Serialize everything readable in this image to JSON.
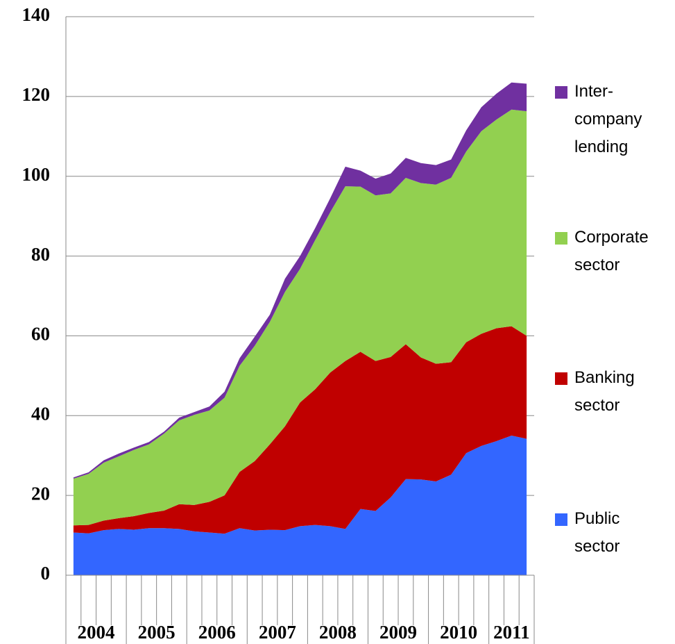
{
  "chart_data": {
    "type": "stacked_area",
    "categories": [
      "2004",
      null,
      null,
      null,
      "2005",
      null,
      null,
      null,
      "2006",
      null,
      null,
      null,
      "2007",
      null,
      null,
      null,
      "2008",
      null,
      null,
      null,
      "2009",
      null,
      null,
      null,
      "2010",
      null,
      null,
      null,
      "2011",
      null,
      null
    ],
    "series": [
      {
        "name": "Public sector",
        "color": "#3366ff",
        "values": [
          10.7,
          10.5,
          11.3,
          11.6,
          11.4,
          11.8,
          11.8,
          11.6,
          11.0,
          10.7,
          10.4,
          11.8,
          11.2,
          11.4,
          11.3,
          12.3,
          12.6,
          12.3,
          11.6,
          16.6,
          16.1,
          19.5,
          24.1,
          24.0,
          23.5,
          25.2,
          30.6,
          32.4,
          33.6,
          35.0,
          34.2
        ]
      },
      {
        "name": "Banking sector",
        "color": "#c00000",
        "values": [
          1.8,
          2.1,
          2.4,
          2.7,
          3.4,
          3.8,
          4.4,
          6.2,
          6.6,
          7.7,
          9.6,
          14.1,
          17.4,
          21.4,
          26.0,
          31.0,
          34.0,
          38.5,
          42.1,
          39.4,
          37.6,
          35.2,
          33.8,
          30.6,
          29.5,
          28.2,
          27.8,
          28.1,
          28.3,
          27.4,
          25.8
        ]
      },
      {
        "name": "Corporate sector",
        "color": "#92d050",
        "values": [
          11.7,
          12.8,
          14.5,
          15.5,
          16.6,
          17.2,
          19.3,
          21.0,
          22.6,
          22.9,
          24.5,
          26.6,
          28.9,
          30.7,
          33.7,
          33.5,
          37.4,
          40.2,
          43.8,
          41.4,
          41.5,
          41.0,
          41.7,
          43.7,
          44.9,
          46.2,
          47.8,
          50.8,
          52.3,
          54.3,
          56.3
        ]
      },
      {
        "name": "Inter-company lending",
        "color": "#7030a0",
        "values": [
          0.3,
          0.4,
          0.6,
          0.7,
          0.6,
          0.6,
          0.5,
          0.7,
          0.7,
          1.0,
          1.5,
          1.9,
          2.3,
          1.8,
          3.3,
          3.2,
          3.0,
          3.5,
          4.9,
          4.0,
          4.2,
          5.0,
          5.0,
          5.0,
          4.9,
          4.6,
          5.3,
          6.0,
          6.5,
          6.8,
          6.9
        ]
      }
    ],
    "ylim": [
      0,
      140
    ],
    "yticks": [
      0,
      20,
      40,
      60,
      80,
      100,
      120,
      140
    ],
    "grid": true,
    "legend": "right"
  }
}
